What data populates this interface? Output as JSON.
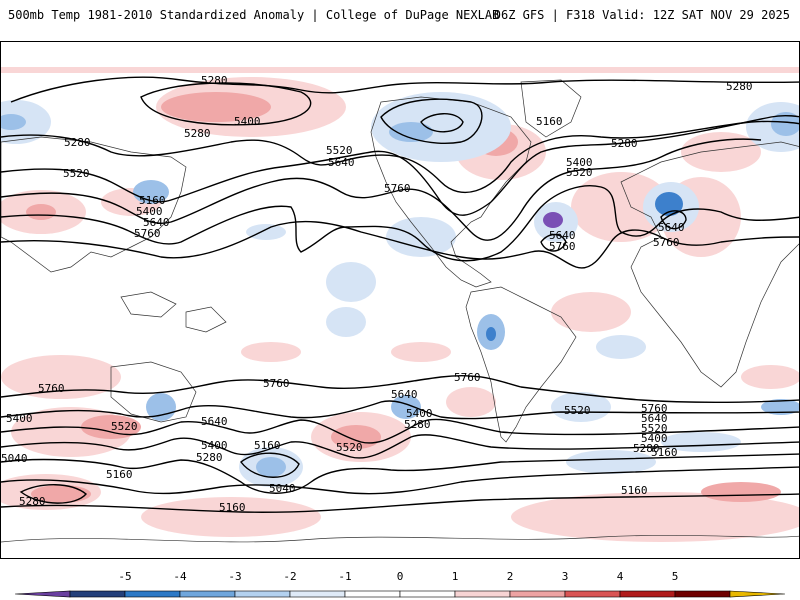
{
  "header": {
    "left_title": "500mb Temp 1981-2010 Standardized Anomaly | College of DuPage NEXLAB",
    "right_title": "06Z GFS | F318 Valid: 12Z SAT NOV 29 2025"
  },
  "colorbar": {
    "labels": [
      "-5",
      "-4",
      "-3",
      "-2",
      "-1",
      "0",
      "1",
      "2",
      "3",
      "4",
      "5"
    ],
    "colors": [
      "#6a3fa0",
      "#24407a",
      "#2c79c6",
      "#6fa6dc",
      "#b3d1ef",
      "#dfeaf7",
      "#ffffff",
      "#ffffff",
      "#f7d4d4",
      "#eda3a3",
      "#d95555",
      "#b01c1c",
      "#6e0000",
      "#e8b800"
    ]
  },
  "map": {
    "contour_labels": [
      "5280",
      "5400",
      "5520",
      "5640",
      "5760",
      "5160",
      "5040"
    ],
    "colors": {
      "warm_light": "#f9d6d6",
      "warm_mid": "#f0a8a8",
      "cold_light": "#d6e4f5",
      "cold_mid": "#9cc0e8",
      "cold_strong": "#3d80cc",
      "purple": "#7a4fb5",
      "contour": "#000000",
      "land_outline": "#333333"
    }
  }
}
